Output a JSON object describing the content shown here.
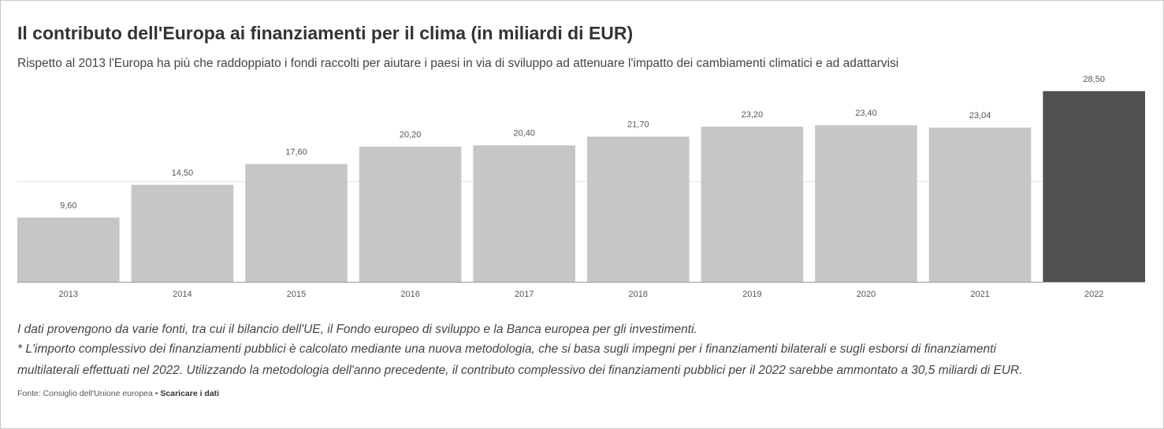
{
  "header": {
    "title": "Il contributo dell'Europa ai finanziamenti per il clima (in miliardi di EUR)",
    "subtitle": "Rispetto al 2013 l'Europa ha più che raddoppiato i fondi raccolti per aiutare i paesi in via di sviluppo ad attenuare l'impatto dei cambiamenti climatici e ad adattarvisi"
  },
  "chart_data": {
    "type": "bar",
    "title": "Il contributo dell'Europa ai finanziamenti per il clima (in miliardi di EUR)",
    "categories": [
      "2013",
      "2014",
      "2015",
      "2016",
      "2017",
      "2018",
      "2019",
      "2020",
      "2021",
      "2022"
    ],
    "values": [
      9.6,
      14.5,
      17.6,
      20.2,
      20.4,
      21.7,
      23.2,
      23.4,
      23.04,
      28.5
    ],
    "labels": [
      "9,60",
      "14,50",
      "17,60",
      "20,20",
      "20,40",
      "21,70",
      "23,20",
      "23,40",
      "23,04",
      "28,50"
    ],
    "xlabel": "",
    "ylabel": "",
    "ylim": [
      0,
      30
    ],
    "grid": true,
    "colors": {
      "default": "#c6c6c7",
      "highlight": "#505052",
      "grid": "#e6e6e6",
      "axis": "#999999"
    },
    "highlight_category": "2022"
  },
  "notes": {
    "line1": "I dati provengono da varie fonti, tra cui il bilancio dell'UE, il Fondo europeo di sviluppo e la Banca europea per gli investimenti.",
    "line2": "* L'importo complessivo dei finanziamenti pubblici è calcolato mediante una nuova metodologia, che si basa sugli impegni per i finanziamenti bilaterali e sugli esborsi di finanziamenti",
    "line3": "multilaterali effettuati nel 2022. Utilizzando la metodologia dell'anno precedente, il contributo complessivo dei finanziamenti pubblici per il 2022 sarebbe ammontato a 30,5 miliardi di EUR."
  },
  "footer": {
    "source": "Fonte: Consiglio dell'Unione europea",
    "separator": " • ",
    "download_link": "Scaricare i dati"
  }
}
